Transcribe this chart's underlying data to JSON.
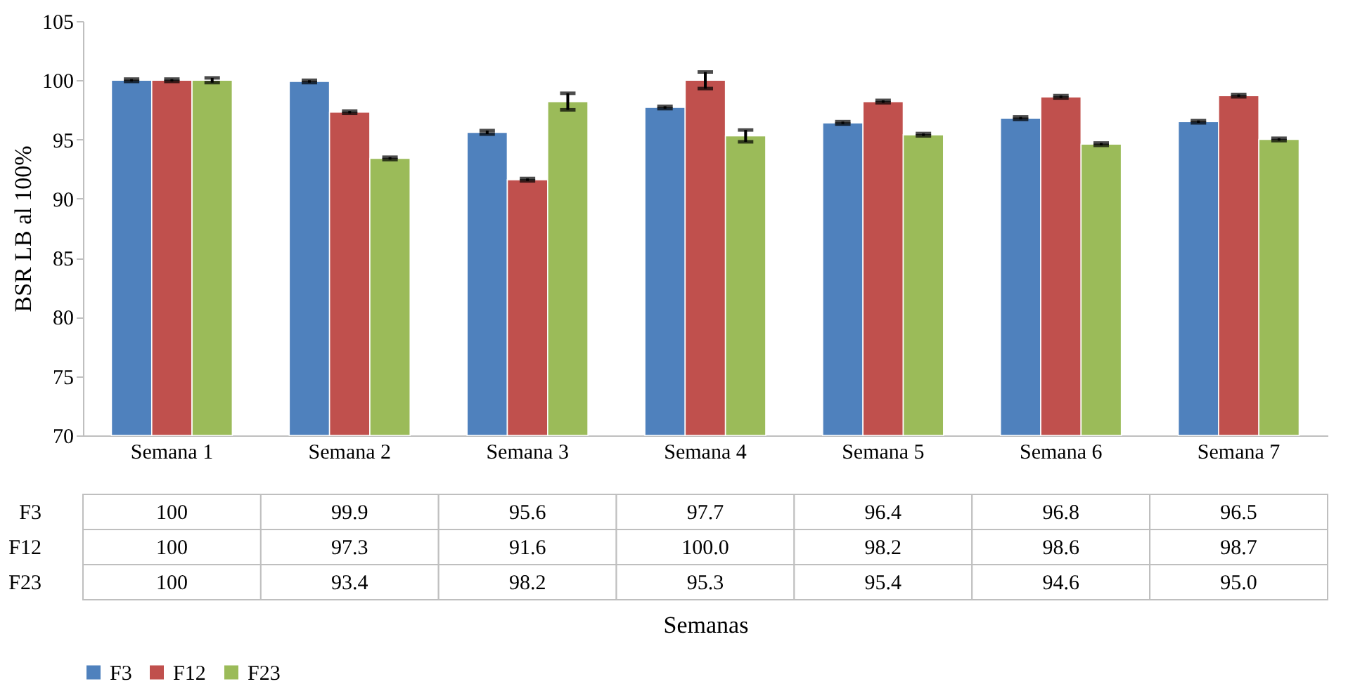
{
  "chart_data": {
    "type": "bar",
    "annotations": [
      "Semanas"
    ],
    "ylabel": "BSR LB al 100%",
    "categories": [
      "Semana 1",
      "Semana 2",
      "Semana 3",
      "Semana 4",
      "Semana 5",
      "Semana 6",
      "Semana 7"
    ],
    "series": [
      {
        "name": "F3",
        "color": "#4f81bd",
        "values": [
          100,
          99.9,
          95.6,
          97.7,
          96.4,
          96.8,
          96.5
        ],
        "errors": [
          0.1,
          0.1,
          0.15,
          0.1,
          0.1,
          0.1,
          0.1
        ],
        "value_labels": [
          "100",
          "99.9",
          "95.6",
          "97.7",
          "96.4",
          "96.8",
          "96.5"
        ]
      },
      {
        "name": "F12",
        "color": "#c0504d",
        "values": [
          100,
          97.3,
          91.6,
          100.0,
          98.2,
          98.6,
          98.7
        ],
        "errors": [
          0.1,
          0.1,
          0.1,
          0.7,
          0.1,
          0.1,
          0.1
        ],
        "value_labels": [
          "100",
          "97.3",
          "91.6",
          "100.0",
          "98.2",
          "98.6",
          "98.7"
        ]
      },
      {
        "name": "F23",
        "color": "#9bbb59",
        "values": [
          100,
          93.4,
          98.2,
          95.3,
          95.4,
          94.6,
          95.0
        ],
        "errors": [
          0.2,
          0.1,
          0.7,
          0.5,
          0.1,
          0.1,
          0.1
        ],
        "value_labels": [
          "100",
          "93.4",
          "98.2",
          "95.3",
          "95.4",
          "94.6",
          "95.0"
        ]
      }
    ],
    "ylim": [
      70,
      105
    ],
    "yticks": [
      70,
      75,
      80,
      85,
      90,
      95,
      100,
      105
    ],
    "grid": false,
    "legend": "bottom"
  }
}
